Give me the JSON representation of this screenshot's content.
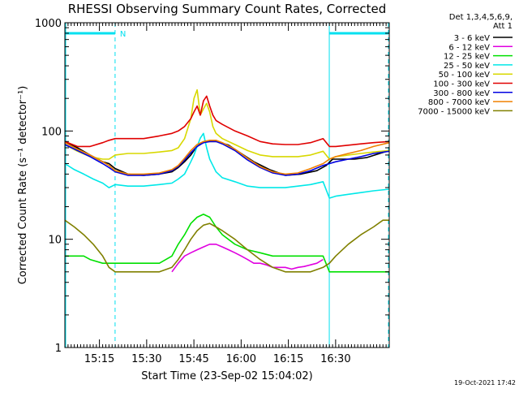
{
  "chart_data": {
    "type": "line",
    "title": "RHESSI Observing Summary Count Rates, Corrected",
    "xlabel": "Start Time (23-Sep-02 15:04:02)",
    "ylabel": "Corrected Count Rate (s⁻¹ detector⁻¹)",
    "yscale": "log",
    "ylim": [
      1,
      1000
    ],
    "xlim_minutes": [
      0,
      103
    ],
    "x_ticks": [
      "15:15",
      "15:30",
      "15:45",
      "16:00",
      "16:15",
      "16:30"
    ],
    "x_tick_minutes": [
      10.97,
      25.97,
      40.97,
      55.97,
      70.97,
      85.97
    ],
    "y_ticks": [
      "1",
      "10",
      "100",
      "1000"
    ],
    "y_tick_values": [
      1,
      10,
      100,
      1000
    ],
    "legend_header": [
      "Det 1,3,4,5,6,9,",
      "Att 1"
    ],
    "footer_date": "19-Oct-2021 17:42",
    "night_label": "N",
    "night_intervals_minutes": [
      [
        0,
        16.2
      ],
      [
        83.7,
        103
      ]
    ],
    "grid": false,
    "legend_placement": "right",
    "series": [
      {
        "name": "3 - 6 keV",
        "color": "#000000",
        "x": [
          0,
          4,
          8,
          12,
          14,
          16,
          20,
          25,
          30,
          34,
          36,
          38,
          40,
          41,
          42,
          43,
          44,
          45,
          46,
          47,
          48,
          49,
          52,
          56,
          60,
          65,
          70,
          75,
          80,
          83,
          85,
          88,
          92,
          96,
          100,
          103
        ],
        "y": [
          80,
          70,
          60,
          52,
          50,
          45,
          40,
          39,
          40,
          42,
          46,
          52,
          60,
          66,
          72,
          76,
          78,
          80,
          80,
          80,
          80,
          79,
          74,
          62,
          52,
          44,
          39,
          40,
          43,
          48,
          55,
          55,
          55,
          57,
          62,
          66
        ]
      },
      {
        "name": "6 - 12 keV",
        "color": "#e000e0",
        "x": [
          34,
          36,
          38,
          40,
          42,
          44,
          46,
          48,
          50,
          52,
          54,
          56,
          58,
          60,
          62,
          64,
          66,
          68,
          70,
          72,
          74,
          76,
          78,
          80,
          82
        ],
        "y": [
          5,
          6,
          7,
          7.5,
          8,
          8.5,
          9,
          9,
          8.5,
          8,
          7.5,
          7,
          6.5,
          6,
          6,
          5.8,
          5.5,
          5.5,
          5.5,
          5.3,
          5.5,
          5.6,
          5.8,
          6,
          6.5
        ]
      },
      {
        "name": "12 - 25 keV",
        "color": "#00e000",
        "x": [
          0,
          2,
          4,
          6,
          8,
          12,
          16,
          20,
          25,
          30,
          34,
          36,
          38,
          40,
          42,
          44,
          46,
          48,
          50,
          54,
          58,
          62,
          66,
          70,
          74,
          78,
          82,
          84,
          86,
          90,
          94,
          98,
          103
        ],
        "y": [
          7,
          7,
          7,
          7,
          6.5,
          6,
          6,
          6,
          6,
          6,
          7,
          9,
          11,
          14,
          16,
          17,
          16,
          13,
          11,
          9,
          8,
          7.5,
          7,
          7,
          7,
          7,
          7,
          5,
          5,
          5,
          5,
          5,
          5
        ]
      },
      {
        "name": "25 - 50 keV",
        "color": "#00e8e8",
        "x": [
          0,
          3,
          6,
          9,
          12,
          14,
          16,
          20,
          25,
          30,
          34,
          36,
          38,
          40,
          41,
          42,
          43,
          44,
          45,
          46,
          47,
          48,
          50,
          54,
          58,
          62,
          66,
          70,
          74,
          78,
          82,
          84,
          86,
          90,
          94,
          98,
          103
        ],
        "y": [
          50,
          44,
          40,
          36,
          33,
          30,
          32,
          31,
          31,
          32,
          33,
          36,
          40,
          52,
          60,
          72,
          86,
          95,
          70,
          55,
          48,
          42,
          37,
          34,
          31,
          30,
          30,
          30,
          31,
          32,
          34,
          24,
          25,
          26,
          27,
          28,
          29
        ]
      },
      {
        "name": "50 - 100 keV",
        "color": "#d8d800",
        "x": [
          0,
          4,
          8,
          12,
          14,
          16,
          20,
          25,
          30,
          34,
          36,
          38,
          40,
          41,
          42,
          43,
          44,
          45,
          46,
          47,
          48,
          50,
          54,
          58,
          62,
          66,
          70,
          74,
          78,
          82,
          84,
          86,
          90,
          94,
          98,
          103
        ],
        "y": [
          75,
          65,
          58,
          55,
          55,
          60,
          62,
          62,
          64,
          66,
          70,
          85,
          130,
          200,
          240,
          140,
          160,
          180,
          150,
          110,
          95,
          85,
          75,
          66,
          60,
          58,
          58,
          58,
          60,
          65,
          55,
          58,
          60,
          62,
          64,
          66
        ]
      },
      {
        "name": "100 - 300 keV",
        "color": "#e00000",
        "x": [
          0,
          4,
          8,
          12,
          14,
          16,
          20,
          25,
          30,
          34,
          36,
          38,
          40,
          41,
          42,
          43,
          44,
          45,
          46,
          47,
          48,
          50,
          54,
          58,
          62,
          66,
          70,
          74,
          78,
          82,
          84,
          86,
          90,
          94,
          98,
          103
        ],
        "y": [
          80,
          72,
          72,
          78,
          82,
          85,
          85,
          85,
          90,
          95,
          100,
          110,
          130,
          150,
          170,
          140,
          190,
          210,
          170,
          140,
          125,
          115,
          100,
          90,
          80,
          76,
          75,
          75,
          78,
          85,
          72,
          72,
          74,
          76,
          78,
          80
        ]
      },
      {
        "name": "300 - 800 keV",
        "color": "#0000e0",
        "x": [
          0,
          4,
          8,
          12,
          14,
          16,
          20,
          25,
          30,
          34,
          36,
          38,
          40,
          42,
          44,
          46,
          48,
          50,
          54,
          58,
          62,
          66,
          70,
          74,
          78,
          82,
          84,
          86,
          90,
          94,
          98,
          103
        ],
        "y": [
          75,
          66,
          58,
          50,
          46,
          42,
          39,
          39,
          40,
          43,
          47,
          54,
          63,
          72,
          78,
          80,
          80,
          76,
          66,
          54,
          46,
          41,
          39,
          40,
          43,
          48,
          50,
          52,
          55,
          58,
          62,
          65
        ]
      },
      {
        "name": "800 - 7000 keV",
        "color": "#f08000",
        "x": [
          0,
          4,
          8,
          12,
          14,
          16,
          20,
          25,
          30,
          34,
          36,
          38,
          40,
          42,
          44,
          46,
          48,
          50,
          54,
          58,
          62,
          66,
          70,
          74,
          78,
          82,
          84,
          86,
          90,
          94,
          98,
          103
        ],
        "y": [
          78,
          68,
          60,
          52,
          48,
          43,
          40,
          40,
          41,
          44,
          48,
          56,
          66,
          75,
          80,
          82,
          82,
          78,
          68,
          56,
          47,
          42,
          40,
          41,
          45,
          50,
          55,
          58,
          62,
          66,
          72,
          78
        ]
      },
      {
        "name": "7000 - 15000 keV",
        "color": "#808000",
        "x": [
          0,
          3,
          6,
          9,
          12,
          14,
          16,
          20,
          25,
          30,
          34,
          36,
          38,
          40,
          42,
          44,
          46,
          48,
          50,
          54,
          58,
          62,
          66,
          70,
          74,
          78,
          82,
          84,
          86,
          90,
          94,
          98,
          101,
          103
        ],
        "y": [
          15,
          13,
          11,
          9,
          7,
          5.5,
          5,
          5,
          5,
          5,
          5.5,
          6.5,
          8,
          10,
          12,
          13.5,
          14,
          13,
          12,
          10,
          8,
          6.5,
          5.5,
          5,
          5,
          5,
          5.5,
          6,
          7,
          9,
          11,
          13,
          15,
          15
        ]
      }
    ]
  }
}
